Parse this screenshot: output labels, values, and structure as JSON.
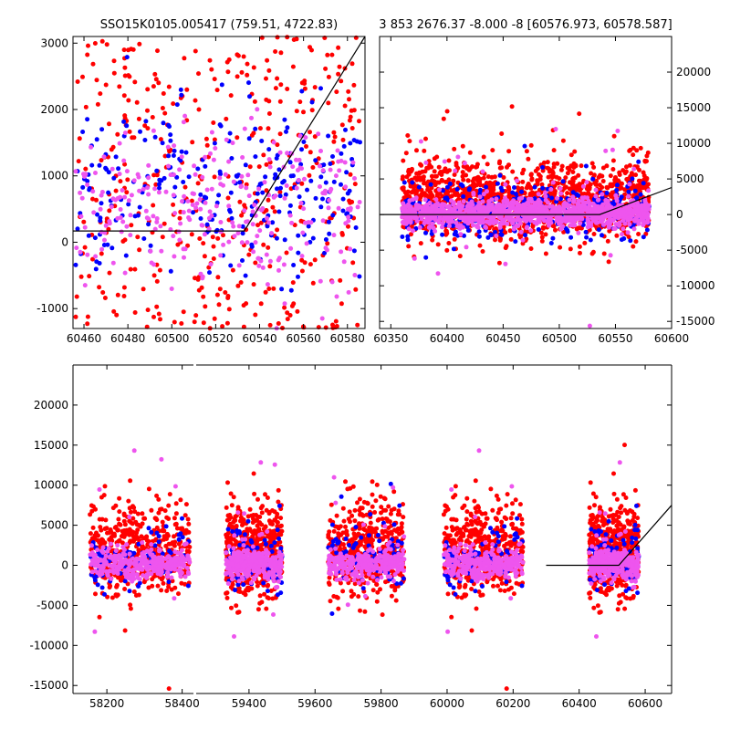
{
  "colors": {
    "series_a": "#ff0000",
    "series_b": "#0000ff",
    "series_c": "#ee55ee",
    "model": "#000000"
  },
  "chart_data": [
    {
      "type": "scatter",
      "title": "SSO15K0105.005417 (759.51, 4722.83)",
      "xlim": [
        60455,
        60588
      ],
      "ylim": [
        -1300,
        3100
      ],
      "x_ticks": [
        60460,
        60480,
        60500,
        60520,
        60540,
        60560,
        60580
      ],
      "y_ticks": [
        -1000,
        0,
        1000,
        2000,
        3000
      ],
      "y_axis_side": "left",
      "series": [
        {
          "color": "red",
          "x_range": [
            60456,
            60586
          ],
          "y_center": 900,
          "y_spread": 1400,
          "count": 420
        },
        {
          "color": "blue",
          "x_range": [
            60456,
            60586
          ],
          "y_center": 800,
          "y_spread": 900,
          "count": 260
        },
        {
          "color": "violet",
          "x_range": [
            60456,
            60586
          ],
          "y_center": 500,
          "y_spread": 900,
          "count": 280
        }
      ],
      "model_line": {
        "x": [
          60455,
          60533,
          60588
        ],
        "y": [
          170,
          170,
          3100
        ]
      }
    },
    {
      "type": "scatter",
      "title": "3 853 2676.37 -8.000 -8 [60576.973, 60578.587]",
      "xlim": [
        60340,
        60600
      ],
      "ylim": [
        -16000,
        25000
      ],
      "x_ticks": [
        60350,
        60400,
        60450,
        60500,
        60550,
        60600
      ],
      "y_ticks": [
        -15000,
        -10000,
        -5000,
        0,
        5000,
        10000,
        15000,
        20000
      ],
      "y_axis_side": "right",
      "series": [
        {
          "color": "red",
          "x_range": [
            60360,
            60580
          ],
          "y_center": 2000,
          "y_spread": 3500,
          "count": 1300
        },
        {
          "color": "blue",
          "x_range": [
            60360,
            60580
          ],
          "y_center": 800,
          "y_spread": 2500,
          "count": 320
        },
        {
          "color": "violet",
          "x_range": [
            60360,
            60580
          ],
          "y_center": 200,
          "y_spread": 1200,
          "count": 1100
        }
      ],
      "model_line": {
        "x": [
          60340,
          60536,
          60600
        ],
        "y": [
          0,
          0,
          3800
        ]
      }
    },
    {
      "type": "scatter",
      "title": "",
      "ylim": [
        -16000,
        25000
      ],
      "y_ticks": [
        -15000,
        -10000,
        -5000,
        0,
        5000,
        10000,
        15000,
        20000
      ],
      "y_axis_side": "left",
      "broken_x_axis": true,
      "segments": [
        {
          "xlim": [
            58110,
            58430
          ],
          "x_ticks": [
            58200,
            58400
          ],
          "data_range": [
            58155,
            58420
          ]
        },
        {
          "xlim": [
            59240,
            60680
          ],
          "x_ticks": [
            59400,
            59600,
            59800,
            60000,
            60200,
            60400,
            60600
          ],
          "clusters": [
            [
              59330,
              59500
            ],
            [
              59640,
              59870
            ],
            [
              59990,
              60230
            ],
            [
              60430,
              60580
            ]
          ]
        }
      ],
      "series": [
        {
          "color": "red",
          "y_center": 2000,
          "y_spread": 3500
        },
        {
          "color": "blue",
          "y_center": 800,
          "y_spread": 2500
        },
        {
          "color": "violet",
          "y_center": 200,
          "y_spread": 1200
        }
      ],
      "model_line": {
        "x": [
          60300,
          60520,
          60680
        ],
        "y": [
          0,
          0,
          7500
        ]
      }
    }
  ]
}
